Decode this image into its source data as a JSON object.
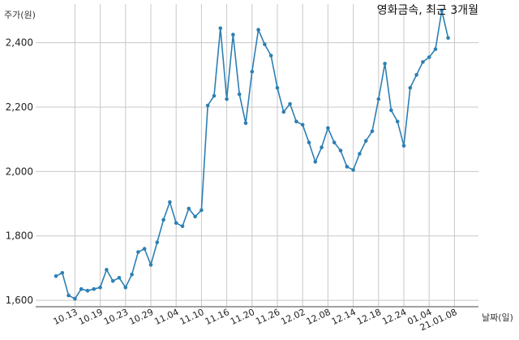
{
  "chart_data": {
    "type": "line",
    "title": "영화금속, 최근 3개월",
    "ylabel": "주가(원)",
    "xlabel": "날짜(일)",
    "ylim": [
      1580,
      2520
    ],
    "yticks": [
      1600,
      1800,
      2000,
      2200,
      2400
    ],
    "ytick_labels": [
      "1,600",
      "1,800",
      "2,000",
      "2,200",
      "2,400"
    ],
    "xticks": [
      "10.13",
      "10.19",
      "10.23",
      "10.29",
      "11.04",
      "11.10",
      "11.16",
      "11.20",
      "11.26",
      "12.02",
      "12.08",
      "12.14",
      "12.18",
      "12.24",
      "01.04",
      "21.01.08"
    ],
    "xtick_index": [
      3,
      7,
      11,
      15,
      19,
      23,
      27,
      31,
      35,
      39,
      43,
      47,
      51,
      55,
      59,
      63
    ],
    "grid": true,
    "series": [
      {
        "values": [
          1675,
          1685,
          1615,
          1605,
          1635,
          1630,
          1635,
          1640,
          1695,
          1660,
          1670,
          1640,
          1680,
          1750,
          1760,
          1710,
          1780,
          1850,
          1905,
          1840,
          1830,
          1885,
          1860,
          1880,
          2205,
          2235,
          2445,
          2225,
          2425,
          2240,
          2150,
          2310,
          2440,
          2395,
          2360,
          2260,
          2185,
          2210,
          2155,
          2145,
          2090,
          2030,
          2075,
          2135,
          2090,
          2065,
          2015,
          2005,
          2055,
          2095,
          2125,
          2225,
          2335,
          2190,
          2155,
          2080,
          2260,
          2300,
          2340,
          2355,
          2380,
          2500,
          2415
        ]
      }
    ]
  }
}
